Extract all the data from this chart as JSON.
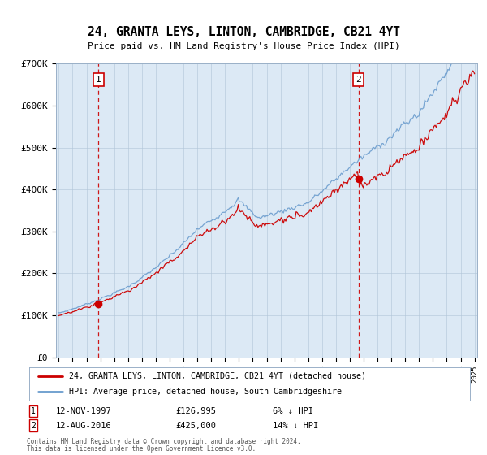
{
  "title": "24, GRANTA LEYS, LINTON, CAMBRIDGE, CB21 4YT",
  "subtitle": "Price paid vs. HM Land Registry's House Price Index (HPI)",
  "legend_line1": "24, GRANTA LEYS, LINTON, CAMBRIDGE, CB21 4YT (detached house)",
  "legend_line2": "HPI: Average price, detached house, South Cambridgeshire",
  "annotation1_date": "12-NOV-1997",
  "annotation1_price": "£126,995",
  "annotation1_hpi": "6% ↓ HPI",
  "annotation2_date": "12-AUG-2016",
  "annotation2_price": "£425,000",
  "annotation2_hpi": "14% ↓ HPI",
  "footer": "Contains HM Land Registry data © Crown copyright and database right 2024.\nThis data is licensed under the Open Government Licence v3.0.",
  "background_color": "#dce9f5",
  "red_line_color": "#cc0000",
  "blue_line_color": "#6699cc",
  "vline_color": "#cc0000",
  "point_color": "#cc0000",
  "ylim": [
    0,
    700000
  ],
  "ytick_values": [
    0,
    100000,
    200000,
    300000,
    400000,
    500000,
    600000,
    700000
  ],
  "ytick_labels": [
    "£0",
    "£100K",
    "£200K",
    "£300K",
    "£400K",
    "£500K",
    "£600K",
    "£700K"
  ],
  "start_year": 1995,
  "end_year": 2025,
  "purchase1_year": 1997.87,
  "purchase1_value": 126995,
  "purchase2_year": 2016.62,
  "purchase2_value": 425000
}
